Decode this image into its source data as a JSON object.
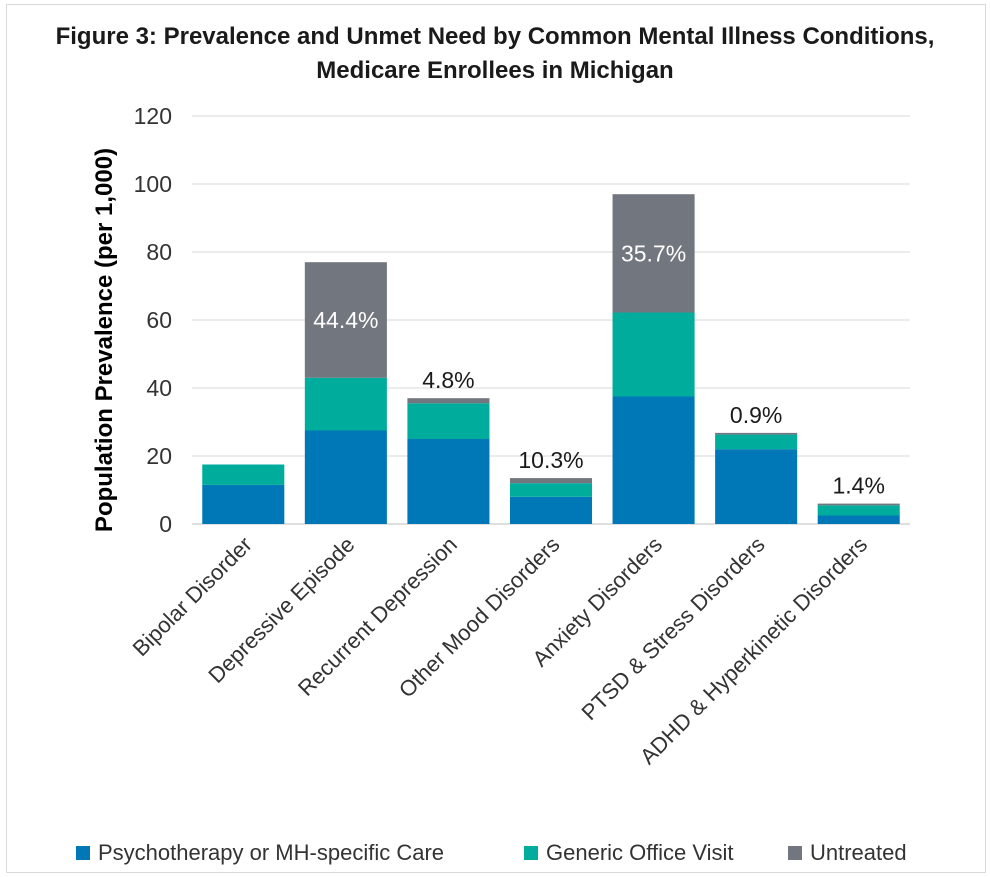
{
  "chart_data": {
    "type": "bar",
    "stacked": true,
    "title": "Figure 3: Prevalence and Unmet Need by Common Mental Illness Conditions,",
    "title_line2": "Medicare Enrollees in Michigan",
    "ylabel": "Population  Prevalence (per 1,000)",
    "xlabel": "",
    "ylim": [
      0,
      120
    ],
    "yticks": [
      0,
      20,
      40,
      60,
      80,
      100,
      120
    ],
    "grid": true,
    "legend_position": "bottom",
    "categories": [
      "Bipolar Disorder",
      "Depressive Episode",
      "Recurrent Depression",
      "Other Mood Disorders",
      "Anxiety Disorders",
      "PTSD & Stress Disorders",
      "ADHD & Hyperkinetic Disorders"
    ],
    "series": [
      {
        "name": "Psychotherapy or MH-specific Care",
        "color": "#0077b6",
        "values": [
          11.5,
          27.5,
          25,
          8,
          37.5,
          22,
          2.5
        ]
      },
      {
        "name": "Generic Office Visit",
        "color": "#00ac9c",
        "values": [
          6,
          15.5,
          10.5,
          4,
          24.7,
          4.3,
          3
        ]
      },
      {
        "name": "Untreated",
        "color": "#72767e",
        "values": [
          0,
          34,
          1.5,
          1.5,
          34.8,
          0.5,
          0.5
        ]
      }
    ],
    "data_labels": [
      "",
      "44.4%",
      "4.8%",
      "10.3%",
      "35.7%",
      "0.9%",
      "1.4%"
    ],
    "data_label_position": [
      "",
      "inside",
      "above",
      "above",
      "inside",
      "above",
      "above"
    ]
  }
}
